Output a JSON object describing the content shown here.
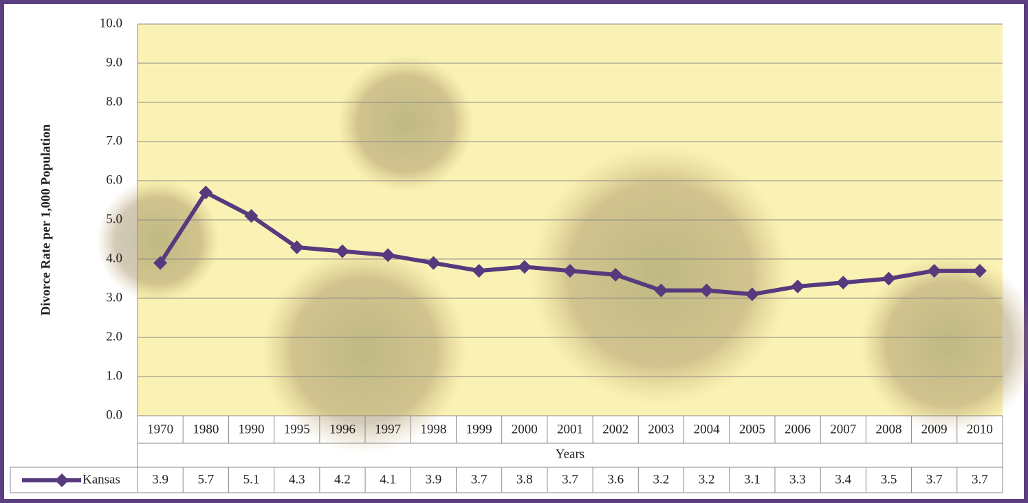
{
  "chart_data": {
    "type": "line",
    "y_label": "Divorce Rate per 1,000 Population",
    "x_label": "Years",
    "categories": [
      "1970",
      "1980",
      "1990",
      "1995",
      "1996",
      "1997",
      "1998",
      "1999",
      "2000",
      "2001",
      "2002",
      "2003",
      "2004",
      "2005",
      "2006",
      "2007",
      "2008",
      "2009",
      "2010"
    ],
    "series": [
      {
        "name": "Kansas",
        "color": "#573a7e",
        "values": [
          3.9,
          5.7,
          5.1,
          4.3,
          4.2,
          4.1,
          3.9,
          3.7,
          3.8,
          3.7,
          3.6,
          3.2,
          3.2,
          3.1,
          3.3,
          3.4,
          3.5,
          3.7,
          3.7
        ]
      }
    ],
    "ylim": [
      0,
      10
    ],
    "yticks": [
      {
        "value": 0,
        "label": "0.0"
      },
      {
        "value": 1,
        "label": "1.0"
      },
      {
        "value": 2,
        "label": "2.0"
      },
      {
        "value": 3,
        "label": "3.0"
      },
      {
        "value": 4,
        "label": "4.0"
      },
      {
        "value": 5,
        "label": "5.0"
      },
      {
        "value": 6,
        "label": "6.0"
      },
      {
        "value": 7,
        "label": "7.0"
      },
      {
        "value": 8,
        "label": "8.0"
      },
      {
        "value": 9,
        "label": "9.0"
      },
      {
        "value": 10,
        "label": "10.0"
      }
    ],
    "grid": true
  }
}
